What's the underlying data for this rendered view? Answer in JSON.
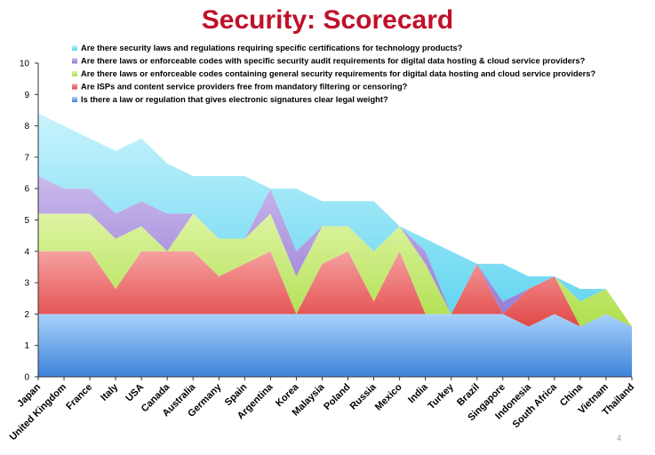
{
  "title": "Security: Scorecard",
  "page_number": "4",
  "colors": {
    "title": "#c0102a",
    "s1_light": "#a9d2fb",
    "s1_dark": "#3d84d9",
    "s2_light": "#f6a0a0",
    "s2_dark": "#e24848",
    "s3_light": "#def4a3",
    "s3_dark": "#afdf4e",
    "s4_light": "#c9b9ec",
    "s4_dark": "#9478d2",
    "s5_light": "#c9f3fd",
    "s5_dark": "#5cd3ef"
  },
  "chart_data": {
    "type": "area",
    "stacked": true,
    "title": "Security: Scorecard",
    "ylim": [
      0,
      10
    ],
    "yticks": [
      "0",
      "1",
      "2",
      "3",
      "4",
      "5",
      "6",
      "7",
      "8",
      "9",
      "10"
    ],
    "grid": false,
    "legend_position": "top",
    "categories": [
      "Japan",
      "United Kingdom",
      "France",
      "Italy",
      "USA",
      "Canada",
      "Australia",
      "Germany",
      "Spain",
      "Argentina",
      "Korea",
      "Malaysia",
      "Poland",
      "Russia",
      "Mexico",
      "India",
      "Turkey",
      "Brazil",
      "Singapore",
      "Indonesia",
      "South Africa",
      "China",
      "Vietnam",
      "Thailand"
    ],
    "series": [
      {
        "name": "Is there a law or regulation that gives electronic signatures clear legal weight?",
        "values": [
          2,
          2,
          2,
          2,
          2,
          2,
          2,
          2,
          2,
          2,
          2,
          2,
          2,
          2,
          2,
          2,
          2,
          2,
          2,
          1.6,
          2,
          1.6,
          2,
          1.6
        ]
      },
      {
        "name": "Are ISPs and content service providers free from mandatory filtering or censoring?",
        "values": [
          2,
          2,
          2,
          0.8,
          2,
          2,
          2,
          1.2,
          1.6,
          2,
          0,
          1.6,
          2,
          0.4,
          2,
          0,
          0,
          1.6,
          0,
          1.2,
          1.2,
          0,
          0,
          0
        ]
      },
      {
        "name": "Are there laws or enforceable codes containing general security requirements for digital data hosting and cloud service providers?",
        "values": [
          1.2,
          1.2,
          1.2,
          1.6,
          0.8,
          0,
          1.2,
          1.2,
          0.8,
          1.2,
          1.2,
          1.2,
          0.8,
          1.6,
          0.8,
          1.6,
          0,
          0,
          0,
          0,
          0,
          0.8,
          0.8,
          0
        ]
      },
      {
        "name": "Are there laws or enforceable codes with specific security audit requirements for digital data hosting & cloud service providers?",
        "values": [
          1.2,
          0.8,
          0.8,
          0.8,
          0.8,
          1.2,
          0,
          0,
          0,
          0.8,
          0.8,
          0,
          0,
          0,
          0,
          0.4,
          0,
          0,
          0.4,
          0,
          0,
          0,
          0,
          0
        ]
      },
      {
        "name": "Are there security laws and regulations requiring specific certifications for technology products?",
        "values": [
          2,
          2,
          1.6,
          2,
          2,
          1.6,
          1.2,
          2,
          2,
          0,
          2,
          0.8,
          0.8,
          1.6,
          0,
          0.4,
          2,
          0,
          1.2,
          0.4,
          0,
          0.4,
          0,
          0
        ]
      }
    ]
  }
}
